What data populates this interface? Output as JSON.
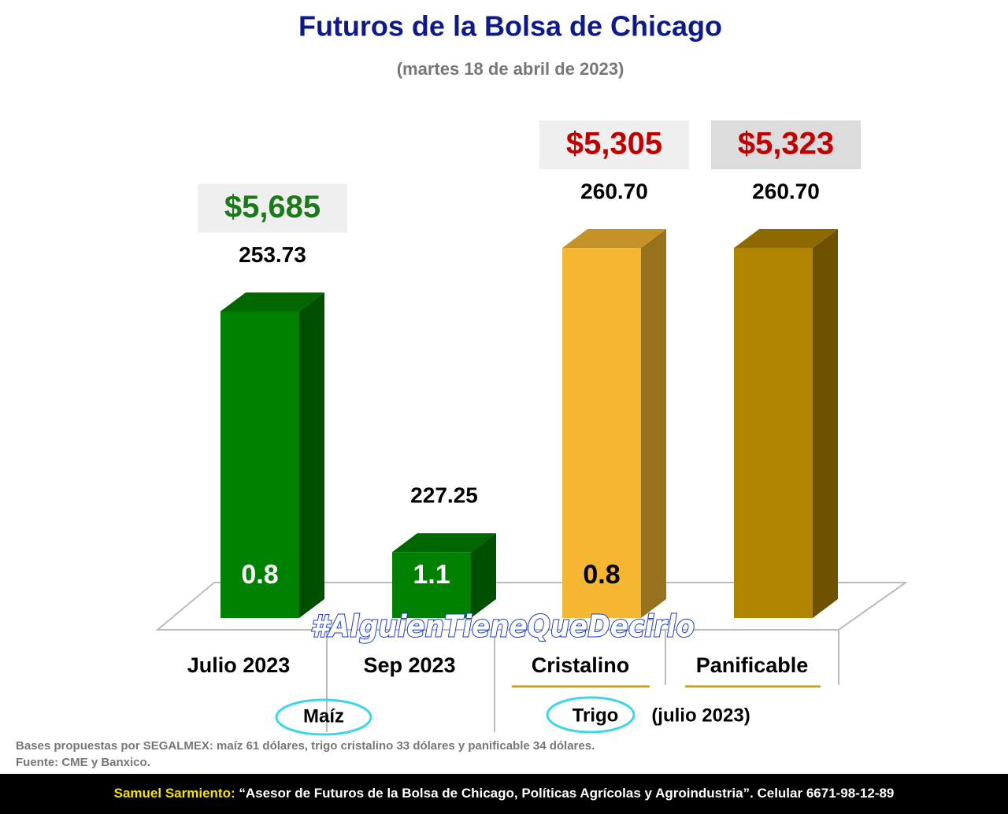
{
  "chart_data": {
    "type": "bar3d",
    "title": "Futuros de la Bolsa de Chicago",
    "subtitle": "(martes 18 de abril de 2023)",
    "categories": [
      "Julio 2023",
      "Sep 2023",
      "Cristalino",
      "Panificable"
    ],
    "values": [
      253.73,
      227.25,
      260.7,
      260.7
    ],
    "value_labels": [
      "253.73",
      "227.25",
      "260.70",
      "260.70"
    ],
    "colors": [
      "#008000",
      "#008000",
      "#f5b731",
      "#b08300"
    ],
    "ylim": [
      220,
      262
    ],
    "price_labels": [
      "$5,685",
      null,
      "$5,305",
      "$5,323"
    ],
    "price_colors": [
      "#1a7a1a",
      null,
      "#c00000",
      "#c00000"
    ],
    "inner_labels": [
      "0.8",
      "1.1",
      "0.8",
      null
    ],
    "inner_label_colors": [
      "#ffffff",
      "#ffffff",
      "#000000",
      null
    ],
    "groups": [
      {
        "label": "Maíz"
      },
      {
        "label": "Trigo",
        "note": "(julio 2023)"
      }
    ],
    "hashtag": "#AlguienTieneQueDecirlo",
    "notes": [
      "Bases propuestas por SEGALMEX: maíz 61 dólares, trigo cristalino 33 dólares y panificable 34 dólares.",
      "Fuente: CME y Banxico."
    ],
    "footer": {
      "author": "Samuel Sarmiento:",
      "text": "“Asesor de Futuros de la Bolsa de Chicago, Políticas Agrícolas y Agroindustria”. Celular 6671-98-12-89"
    }
  }
}
